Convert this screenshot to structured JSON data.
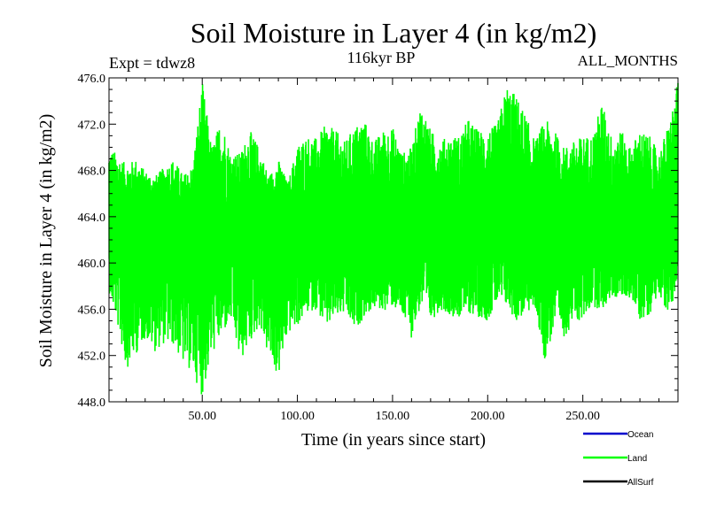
{
  "chart_data": {
    "type": "line",
    "title": "Soil Moisture in Layer 4 (in kg/m2)",
    "subtitle_left": "Expt = tdwz8",
    "subtitle_center": "116kyr BP",
    "subtitle_right": "ALL_MONTHS",
    "xlabel": "Time (in years since start)",
    "ylabel": "Soil Moisture in Layer 4 (in kg/m2)",
    "xlim": [
      1,
      300
    ],
    "ylim": [
      448.0,
      476.0
    ],
    "xticks": [
      50,
      100,
      150,
      200,
      250
    ],
    "xtick_labels": [
      "50.00",
      "100.00",
      "150.00",
      "200.00",
      "250.00"
    ],
    "yticks": [
      448,
      452,
      456,
      460,
      464,
      468,
      472,
      476
    ],
    "ytick_labels": [
      "448.0",
      "452.0",
      "456.0",
      "460.0",
      "464.0",
      "468.0",
      "472.0",
      "476.0"
    ],
    "grid": false,
    "legend_position": "bottom-right",
    "series": [
      {
        "name": "Ocean",
        "color": "#0000cc",
        "values": []
      },
      {
        "name": "Land",
        "color": "#00ff00",
        "x": [
          1,
          5,
          10,
          15,
          20,
          25,
          30,
          35,
          40,
          45,
          50,
          55,
          60,
          65,
          70,
          75,
          80,
          85,
          90,
          95,
          100,
          105,
          110,
          115,
          120,
          125,
          130,
          135,
          140,
          145,
          150,
          155,
          160,
          165,
          170,
          175,
          180,
          185,
          190,
          195,
          200,
          205,
          210,
          215,
          220,
          225,
          230,
          235,
          240,
          245,
          250,
          255,
          260,
          265,
          270,
          275,
          280,
          285,
          290,
          295,
          300
        ],
        "min": [
          457.5,
          455.0,
          450.8,
          452.0,
          453.5,
          452.3,
          453.0,
          452.8,
          451.2,
          450.5,
          448.4,
          452.0,
          453.5,
          455.0,
          451.3,
          453.0,
          454.5,
          451.7,
          450.0,
          453.8,
          454.5,
          455.6,
          456.0,
          454.2,
          455.2,
          455.5,
          454.0,
          455.3,
          456.0,
          455.8,
          456.2,
          455.3,
          453.5,
          456.3,
          454.8,
          456.0,
          455.5,
          455.2,
          455.6,
          455.3,
          455.0,
          456.5,
          456.2,
          454.9,
          455.6,
          456.0,
          451.5,
          454.3,
          453.5,
          454.8,
          455.0,
          456.3,
          455.8,
          457.0,
          456.9,
          457.0,
          455.0,
          455.5,
          457.5,
          455.2,
          458.5
        ],
        "max": [
          470.0,
          469.5,
          468.5,
          469.0,
          468.0,
          467.5,
          468.3,
          469.0,
          467.6,
          468.4,
          475.7,
          470.0,
          472.5,
          469.5,
          469.5,
          471.5,
          470.0,
          467.5,
          469.0,
          466.9,
          470.2,
          471.0,
          470.8,
          472.0,
          471.5,
          470.5,
          471.8,
          472.5,
          470.5,
          471.5,
          471.8,
          469.5,
          470.0,
          474.0,
          471.5,
          470.6,
          471.0,
          471.0,
          472.5,
          471.5,
          471.5,
          472.0,
          475.5,
          474.5,
          472.8,
          470.5,
          472.5,
          471.5,
          470.0,
          470.5,
          471.0,
          471.0,
          474.0,
          471.0,
          471.5,
          470.0,
          471.5,
          471.0,
          469.5,
          472.0,
          475.7
        ],
        "mean_level": 463.5
      },
      {
        "name": "AllSurf",
        "color": "#000000",
        "values": []
      }
    ]
  }
}
